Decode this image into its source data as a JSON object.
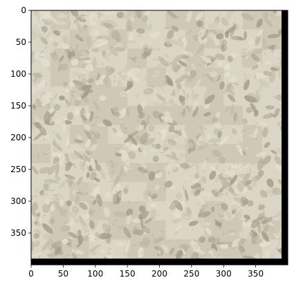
{
  "image": {
    "description_role": "patchwork texture of cream wool-like tiles",
    "colors": {
      "base": "#cfc8b6",
      "light": "#e6e0d2",
      "mid": "#bdb5a1",
      "dark": "#8f8775",
      "shadow": "#a39a86",
      "right_strip": "#000000",
      "bottom_strip": "#000000",
      "frame": "#000000"
    }
  },
  "axes": {
    "x_ticks": [
      "0",
      "50",
      "100",
      "150",
      "200",
      "250",
      "300",
      "350"
    ],
    "y_ticks": [
      "0",
      "50",
      "100",
      "150",
      "200",
      "250",
      "300",
      "350"
    ],
    "x_range": [
      0,
      400
    ],
    "y_range": [
      0,
      400
    ],
    "grid": false
  }
}
